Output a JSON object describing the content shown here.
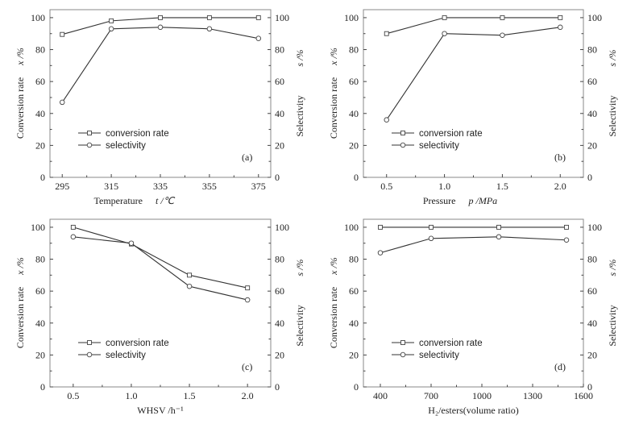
{
  "figure": {
    "legend_labels": [
      "conversion rate",
      "selectivity"
    ],
    "left_axis_label": "Conversion rate",
    "left_axis_var": "x /%",
    "right_axis_label": "Selectivity",
    "right_axis_var": "s /%"
  },
  "chart_data": [
    {
      "type": "line",
      "panel": "(a)",
      "xlabel": "Temperature",
      "xlabel_var": "t /℃",
      "ylabel": "Conversion rate x /%",
      "y2label": "Selectivity s /%",
      "x": [
        295,
        315,
        335,
        355,
        375
      ],
      "xticks": [
        295,
        315,
        335,
        355,
        375
      ],
      "xminor": [
        305,
        325,
        345,
        365
      ],
      "xlim": [
        290,
        380
      ],
      "ylim": [
        0,
        105
      ],
      "yticks": [
        0,
        20,
        40,
        60,
        80,
        100
      ],
      "series": [
        {
          "name": "conversion rate",
          "marker": "square",
          "values": [
            89.5,
            98,
            100,
            100,
            100
          ]
        },
        {
          "name": "selectivity",
          "marker": "circle",
          "values": [
            47,
            93,
            94,
            93,
            87
          ]
        }
      ],
      "legend_position": "lower-left",
      "grid": false
    },
    {
      "type": "line",
      "panel": "(b)",
      "xlabel": "Pressure",
      "xlabel_var": "p /MPa",
      "ylabel": "Conversion rate x /%",
      "y2label": "Selectivity s /%",
      "x": [
        0.5,
        1.0,
        1.5,
        2.0
      ],
      "xticks": [
        "0.5",
        "1.0",
        "1.5",
        "2.0"
      ],
      "xtick_values": [
        0.5,
        1.0,
        1.5,
        2.0
      ],
      "xminor": [
        0.75,
        1.25,
        1.75
      ],
      "xlim": [
        0.3,
        2.2
      ],
      "ylim": [
        0,
        105
      ],
      "yticks": [
        0,
        20,
        40,
        60,
        80,
        100
      ],
      "series": [
        {
          "name": "conversion rate",
          "marker": "square",
          "values": [
            90,
            100,
            100,
            100
          ]
        },
        {
          "name": "selectivity",
          "marker": "circle",
          "values": [
            36,
            90,
            89,
            94
          ]
        }
      ],
      "legend_position": "lower-left",
      "grid": false
    },
    {
      "type": "line",
      "panel": "(c)",
      "xlabel": "WHSV /h⁻¹",
      "xlabel_var": "",
      "ylabel": "Conversion rate x /%",
      "y2label": "Selectivity s /%",
      "x": [
        0.5,
        1.0,
        1.5,
        2.0
      ],
      "xticks": [
        "0.5",
        "1.0",
        "1.5",
        "2.0"
      ],
      "xtick_values": [
        0.5,
        1.0,
        1.5,
        2.0
      ],
      "xminor": [
        0.75,
        1.25,
        1.75
      ],
      "xlim": [
        0.3,
        2.2
      ],
      "ylim": [
        0,
        105
      ],
      "yticks": [
        0,
        20,
        40,
        60,
        80,
        100
      ],
      "series": [
        {
          "name": "conversion rate",
          "marker": "square",
          "values": [
            100,
            89.5,
            70,
            62
          ]
        },
        {
          "name": "selectivity",
          "marker": "circle",
          "values": [
            94,
            90,
            63,
            54.5
          ]
        }
      ],
      "legend_position": "lower-left",
      "grid": false
    },
    {
      "type": "line",
      "panel": "(d)",
      "xlabel": "H₂/esters(volume ratio)",
      "xlabel_var": "",
      "ylabel": "Conversion rate x /%",
      "y2label": "Selectivity s /%",
      "x": [
        400,
        700,
        1100,
        1500
      ],
      "xticks": [
        "400",
        "700",
        "1000",
        "1300",
        "1600"
      ],
      "xtick_values": [
        400,
        700,
        1000,
        1300,
        1600
      ],
      "xminor": [
        550,
        850,
        1150,
        1450
      ],
      "xlim": [
        300,
        1600
      ],
      "ylim": [
        0,
        105
      ],
      "yticks": [
        0,
        20,
        40,
        60,
        80,
        100
      ],
      "series": [
        {
          "name": "conversion rate",
          "marker": "square",
          "values": [
            100,
            100,
            100,
            100
          ]
        },
        {
          "name": "selectivity",
          "marker": "circle",
          "values": [
            84,
            93,
            94,
            92
          ]
        }
      ],
      "legend_position": "lower-left",
      "grid": false
    }
  ]
}
